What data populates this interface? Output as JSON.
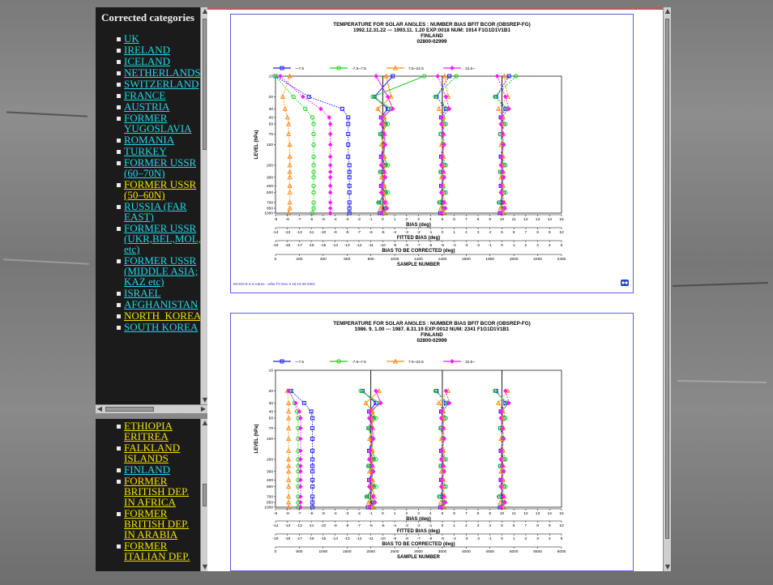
{
  "nav": {
    "heading": "Corrected categories",
    "items": [
      {
        "label": "UK",
        "color": "cyan"
      },
      {
        "label": "IRELAND",
        "color": "cyan"
      },
      {
        "label": "ICELAND",
        "color": "cyan"
      },
      {
        "label": "NETHERLANDS",
        "color": "cyan"
      },
      {
        "label": "SWITZERLAND",
        "color": "cyan"
      },
      {
        "label": "FRANCE",
        "color": "cyan"
      },
      {
        "label": "AUSTRIA",
        "color": "cyan"
      },
      {
        "label": "FORMER YUGOSLAVIA",
        "color": "cyan"
      },
      {
        "label": "ROMANIA",
        "color": "cyan"
      },
      {
        "label": "TURKEY",
        "color": "cyan"
      },
      {
        "label": "FORMER USSR (60–70N)",
        "color": "cyan"
      },
      {
        "label": "FORMER USSR (50–60N)",
        "color": "yellow"
      },
      {
        "label": "RUSSIA (FAR EAST)",
        "color": "cyan"
      },
      {
        "label": "FORMER USSR (UKR,BEL,MOL, etc)",
        "color": "cyan"
      },
      {
        "label": "FORMER USSR (MIDDLE ASIA; KAZ etc)",
        "color": "cyan"
      },
      {
        "label": "ISRAEL",
        "color": "cyan"
      },
      {
        "label": "AFGHANISTAN",
        "color": "cyan"
      },
      {
        "label": "NORTH_KOREA",
        "color": "yellow"
      },
      {
        "label": "SOUTH KOREA",
        "color": "cyan"
      }
    ],
    "bottom_items": [
      {
        "label": "ETHIOPIA ERITREA",
        "color": "yellow"
      },
      {
        "label": "FALKLAND ISLANDS",
        "color": "yellow"
      },
      {
        "label": "FINLAND",
        "color": "cyan"
      },
      {
        "label": "FORMER BRITISH DEP. IN AFRICA",
        "color": "yellow"
      },
      {
        "label": "FORMER BRITISH DEP. IN ARABIA",
        "color": "yellow"
      },
      {
        "label": "FORMER ITALIAN DEP.",
        "color": "yellow"
      }
    ]
  },
  "colors": {
    "nav_cyan": "#22d6e6",
    "nav_yellow": "#f0e000",
    "series_blue": "#1c1cff",
    "series_green": "#18d018",
    "series_orange": "#ff8a1a",
    "series_magenta": "#ff18ff"
  },
  "chart_data": [
    {
      "type": "line",
      "title": "TEMPERATURE FOR SOLAR ANGLES : NUMBER BIAS BFIT BCOR  (OBSREP-FG)",
      "subtitle": "1992.12.31.22 --- 1993.11. 1.20   EXP:0018   NUM:   1914   F1G1D1V1B1",
      "station": "FINLAND",
      "code": "02800-02999",
      "footer": "MAGICS 6.3 icarus - erbe Fri Nov  3 16:10:48 2001",
      "ylabel": "LEVEL (hPa)",
      "levels": [
        10,
        20,
        30,
        40,
        50,
        70,
        100,
        150,
        200,
        250,
        300,
        400,
        500,
        700,
        850,
        1000
      ],
      "level_ticks": [
        "10",
        "20",
        "30",
        "40",
        "50",
        "70",
        "100",
        "200",
        "300",
        "400",
        "500",
        "700",
        "850",
        "1000"
      ],
      "bias_axis": {
        "label": "BIAS (deg)",
        "ticks": [
          "-9",
          "-8",
          "-7",
          "-6",
          "-5",
          "-4",
          "-3",
          "-2",
          "-1",
          "0",
          "1",
          "2",
          "3",
          "4",
          "5",
          "6",
          "7",
          "8",
          "9",
          "10",
          "11",
          "12",
          "13",
          "14",
          "15"
        ]
      },
      "fitted_axis": {
        "label": "FITTED BIAS (deg)",
        "ticks": [
          "-14",
          "-13",
          "-12",
          "-11",
          "-10",
          "-9",
          "-8",
          "-7",
          "-6",
          "-5",
          "-4",
          "-3",
          "-2",
          "-1",
          "0",
          "1",
          "2",
          "3",
          "4",
          "5",
          "6",
          "7",
          "8",
          "9",
          "10"
        ]
      },
      "correct_axis": {
        "label": "BIAS TO BE CORRECTED (deg)",
        "ticks": [
          "-19",
          "-18",
          "-17",
          "-16",
          "-15",
          "-14",
          "-13",
          "-12",
          "-11",
          "-10",
          "-9",
          "-8",
          "-7",
          "-6",
          "-5",
          "-4",
          "-3",
          "-2",
          "-1",
          "0",
          "1",
          "2",
          "3",
          "4",
          "5"
        ]
      },
      "sample_axis": {
        "label": "SAMPLE NUMBER",
        "ticks": [
          "0",
          "200",
          "400",
          "600",
          "800",
          "1000",
          "1200",
          "1400",
          "1600",
          "1800",
          "2000",
          "2200",
          "2400"
        ]
      },
      "xlim": [
        -9,
        15
      ],
      "ref_lines": [
        0,
        5,
        10
      ],
      "legend": [
        "~-7.5",
        "-7.5~7.5",
        "7.5~22.5",
        "22.5~"
      ],
      "series": [
        {
          "name": "~-7.5",
          "sample": [
            -9,
            -6.2,
            -3.4,
            -2.9,
            -2.9,
            -2.9,
            -2.9,
            -2.9,
            -2.8,
            -2.8,
            -2.8,
            -2.8,
            -2.8,
            -2.8,
            -2.8,
            -2.8
          ]
        },
        {
          "name": "-7.5~7.5",
          "sample": [
            -9,
            -7.5,
            -6.5,
            -5.9,
            -5.8,
            -5.8,
            -5.8,
            -5.8,
            -5.8,
            -5.8,
            -5.8,
            -5.8,
            -5.8,
            -5.8,
            -5.8,
            -5.9
          ]
        },
        {
          "name": "7.5~22.5",
          "sample": [
            -7.8,
            -8.4,
            -8.2,
            -8.0,
            -7.9,
            -7.9,
            -7.8,
            -7.8,
            -7.8,
            -7.8,
            -7.8,
            -7.8,
            -7.8,
            -7.8,
            -7.8,
            -7.9
          ]
        },
        {
          "name": "22.5~",
          "sample": [
            -8.6,
            -6.7,
            -5.2,
            -4.5,
            -4.4,
            -4.4,
            -4.4,
            -4.4,
            -4.4,
            -4.4,
            -4.4,
            -4.4,
            -4.4,
            -4.4,
            -4.4,
            -4.4
          ]
        }
      ]
    },
    {
      "type": "line",
      "title": "TEMPERATURE FOR SOLAR ANGLES : NUMBER BIAS BFIT BCOR  (OBSREP-FG)",
      "subtitle": "1986. 9. 1.00 --- 1987. 8.31.19   EXP:0012   NUM:   2341   F1G1D1V1B1",
      "station": "FINLAND",
      "code": "02800-02999",
      "ylabel": "LEVEL (hPa)",
      "levels": [
        10,
        20,
        30,
        40,
        50,
        70,
        100,
        150,
        200,
        250,
        300,
        400,
        500,
        700,
        850,
        1000
      ],
      "level_ticks": [
        "10",
        "20",
        "30",
        "40",
        "50",
        "70",
        "100",
        "200",
        "300",
        "400",
        "500",
        "700",
        "850",
        "1000"
      ],
      "bias_axis": {
        "label": "BIAS (deg)",
        "ticks": [
          "-9",
          "-8",
          "-7",
          "-6",
          "-5",
          "-4",
          "-3",
          "-2",
          "-1",
          "0",
          "1",
          "2",
          "3",
          "4",
          "5",
          "6",
          "7",
          "8",
          "9",
          "10",
          "11",
          "12",
          "13",
          "14",
          "15"
        ]
      },
      "fitted_axis": {
        "label": "FITTED BIAS (deg)",
        "ticks": [
          "-14",
          "-13",
          "-12",
          "-11",
          "-10",
          "-9",
          "-8",
          "-7",
          "-6",
          "-5",
          "-4",
          "-3",
          "-2",
          "-1",
          "0",
          "1",
          "2",
          "3",
          "4",
          "5",
          "6",
          "7",
          "8",
          "9",
          "10"
        ]
      },
      "correct_axis": {
        "label": "BIAS TO BE CORRECTED (deg)",
        "ticks": [
          "-19",
          "-18",
          "-17",
          "-16",
          "-15",
          "-14",
          "-13",
          "-12",
          "-11",
          "-10",
          "-9",
          "-8",
          "-7",
          "-6",
          "-5",
          "-4",
          "-3",
          "-2",
          "-1",
          "0",
          "1",
          "2",
          "3",
          "4",
          "5"
        ]
      },
      "sample_axis": {
        "label": "SAMPLE NUMBER",
        "ticks": [
          "0",
          "500",
          "1000",
          "1500",
          "2000",
          "2500",
          "3000",
          "3500",
          "4000",
          "4500",
          "5000",
          "5500",
          "6000"
        ]
      },
      "xlim": [
        -9,
        15
      ],
      "ref_lines": [
        -1,
        5,
        10
      ],
      "legend": [
        "~-7.5",
        "-7.5~7.5",
        "7.5~22.5",
        "22.5~"
      ],
      "series": [
        {
          "name": "~-7.5",
          "sample": [
            null,
            -7.7,
            -6.6,
            -6.0,
            -5.9,
            -5.9,
            -5.9,
            -5.9,
            -5.9,
            -5.9,
            -5.9,
            -5.9,
            -5.9,
            -5.9,
            -5.9,
            -5.9
          ]
        },
        {
          "name": "-7.5~7.5",
          "sample": [
            null,
            -7.8,
            -7.4,
            -7.2,
            -7.1,
            -7.1,
            -7.1,
            -7.1,
            -7.1,
            -7.1,
            -7.1,
            -7.1,
            -7.1,
            -7.1,
            -7.1,
            -7.1
          ]
        },
        {
          "name": "7.5~22.5",
          "sample": [
            null,
            -8.0,
            -7.9,
            -7.9,
            -7.9,
            -7.9,
            -7.9,
            -7.9,
            -7.9,
            -7.9,
            -7.9,
            -7.9,
            -7.9,
            -7.9,
            -7.9,
            -7.9
          ]
        },
        {
          "name": "22.5~",
          "sample": [
            null,
            -7.9,
            -7.3,
            -7.0,
            -6.9,
            -6.9,
            -6.9,
            -6.9,
            -6.9,
            -6.9,
            -6.9,
            -6.9,
            -6.9,
            -6.9,
            -6.9,
            -6.9
          ]
        }
      ]
    }
  ]
}
